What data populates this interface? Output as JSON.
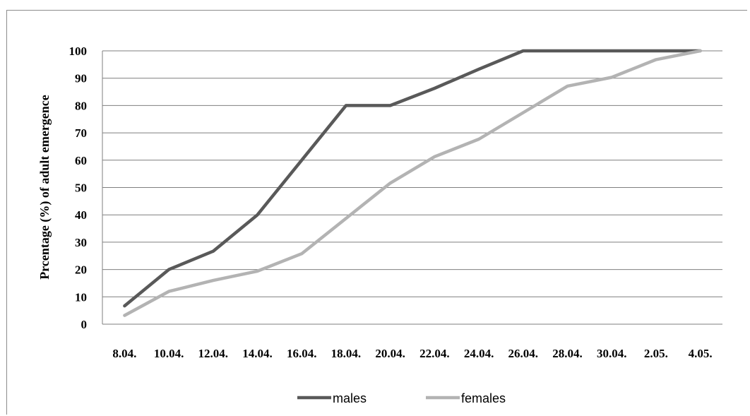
{
  "chart_data": {
    "type": "line",
    "title": "",
    "xlabel": "",
    "ylabel": "Prcentage (%) of adult emergence",
    "categories": [
      "8.04.",
      "10.04.",
      "12.04.",
      "14.04.",
      "16.04.",
      "18.04.",
      "20.04.",
      "22.04.",
      "24.04.",
      "26.04.",
      "28.04.",
      "30.04.",
      "2.05.",
      "4.05."
    ],
    "ylim": [
      0,
      100
    ],
    "yticks": [
      0,
      10,
      20,
      30,
      40,
      50,
      60,
      70,
      80,
      90,
      100
    ],
    "grid": true,
    "legend_position": "bottom",
    "series": [
      {
        "name": "males",
        "color": "#595959",
        "values": [
          6.7,
          20,
          26.7,
          40,
          60,
          80,
          80,
          86.3,
          93.3,
          100,
          100,
          100,
          100,
          100
        ]
      },
      {
        "name": "females",
        "color": "#b3b3b3",
        "values": [
          3.2,
          12,
          16,
          19.4,
          25.8,
          38.7,
          51.6,
          61.3,
          67.7,
          77.4,
          87.1,
          90.3,
          96.8,
          100
        ]
      }
    ]
  }
}
